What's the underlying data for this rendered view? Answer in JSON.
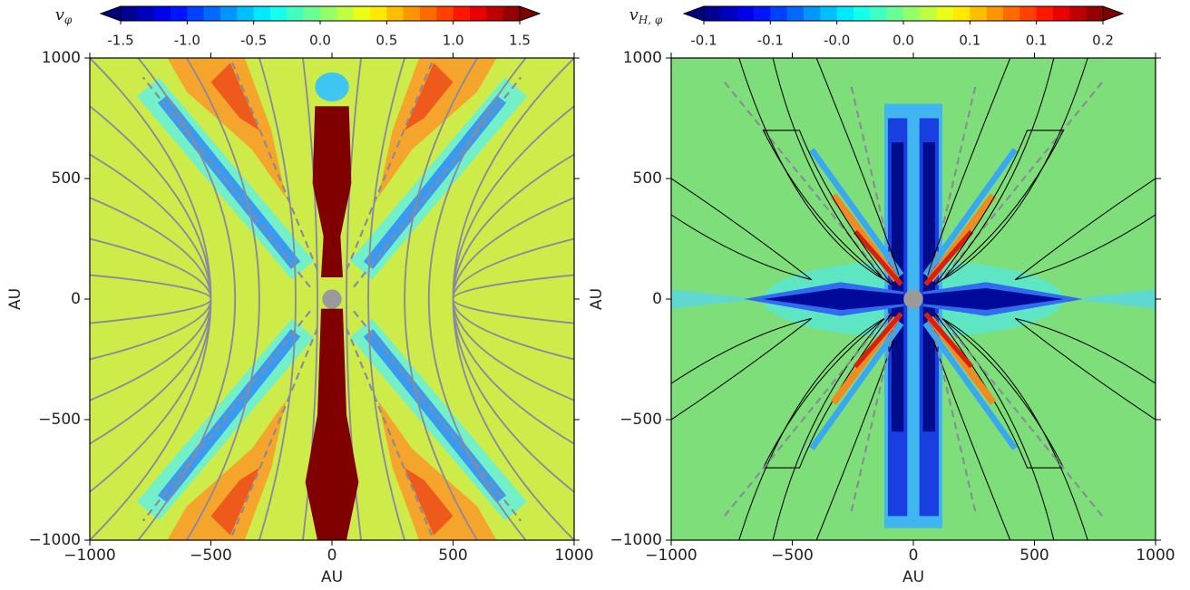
{
  "chart_data": [
    {
      "type": "contour",
      "colorbar_label": {
        "main": "v",
        "sub": "φ"
      },
      "colormap": "jet",
      "clim": [
        -1.5,
        1.5
      ],
      "cticks": [
        -1.5,
        {
          "value": -1,
          "label": "-1.0"
        },
        -0.5,
        {
          "value": 0,
          "label": "0.0"
        },
        0.5,
        {
          "value": 1,
          "label": "1.0"
        },
        1.5
      ],
      "xlabel": "AU",
      "ylabel": "AU",
      "xlim": [
        -1000,
        1000
      ],
      "ylim": [
        -1000,
        1000
      ],
      "xticks": [
        {
          "value": -1000,
          "label": "−1000"
        },
        {
          "value": -500,
          "label": "−500"
        },
        0,
        500,
        1000
      ],
      "yticks": [
        {
          "value": -1000,
          "label": "−1000"
        },
        {
          "value": -500,
          "label": "−500"
        },
        0,
        500,
        1000
      ]
    },
    {
      "type": "contour",
      "colorbar_label": {
        "main": "v",
        "sub": "H, φ"
      },
      "colormap": "jet",
      "clim": [
        -0.14,
        0.16
      ],
      "cticks": [
        {
          "value": -0.14,
          "label": "-0.1"
        },
        {
          "value": -0.09,
          "label": "-0.1"
        },
        {
          "value": -0.04,
          "label": "-0.0"
        },
        {
          "value": 0.01,
          "label": "0.0"
        },
        {
          "value": 0.06,
          "label": "0.1"
        },
        {
          "value": 0.11,
          "label": "0.1"
        },
        {
          "value": 0.16,
          "label": "0.2"
        }
      ],
      "xlabel": "AU",
      "ylabel": "AU",
      "xlim": [
        -1000,
        1000
      ],
      "ylim": [
        -1000,
        1000
      ],
      "xticks": [
        {
          "value": -1000,
          "label": "−1000"
        },
        {
          "value": -500,
          "label": "−500"
        },
        0,
        500,
        1000
      ],
      "yticks": [
        {
          "value": -1000,
          "label": "−1000"
        },
        {
          "value": -500,
          "label": "−500"
        },
        0,
        500,
        1000
      ]
    }
  ]
}
